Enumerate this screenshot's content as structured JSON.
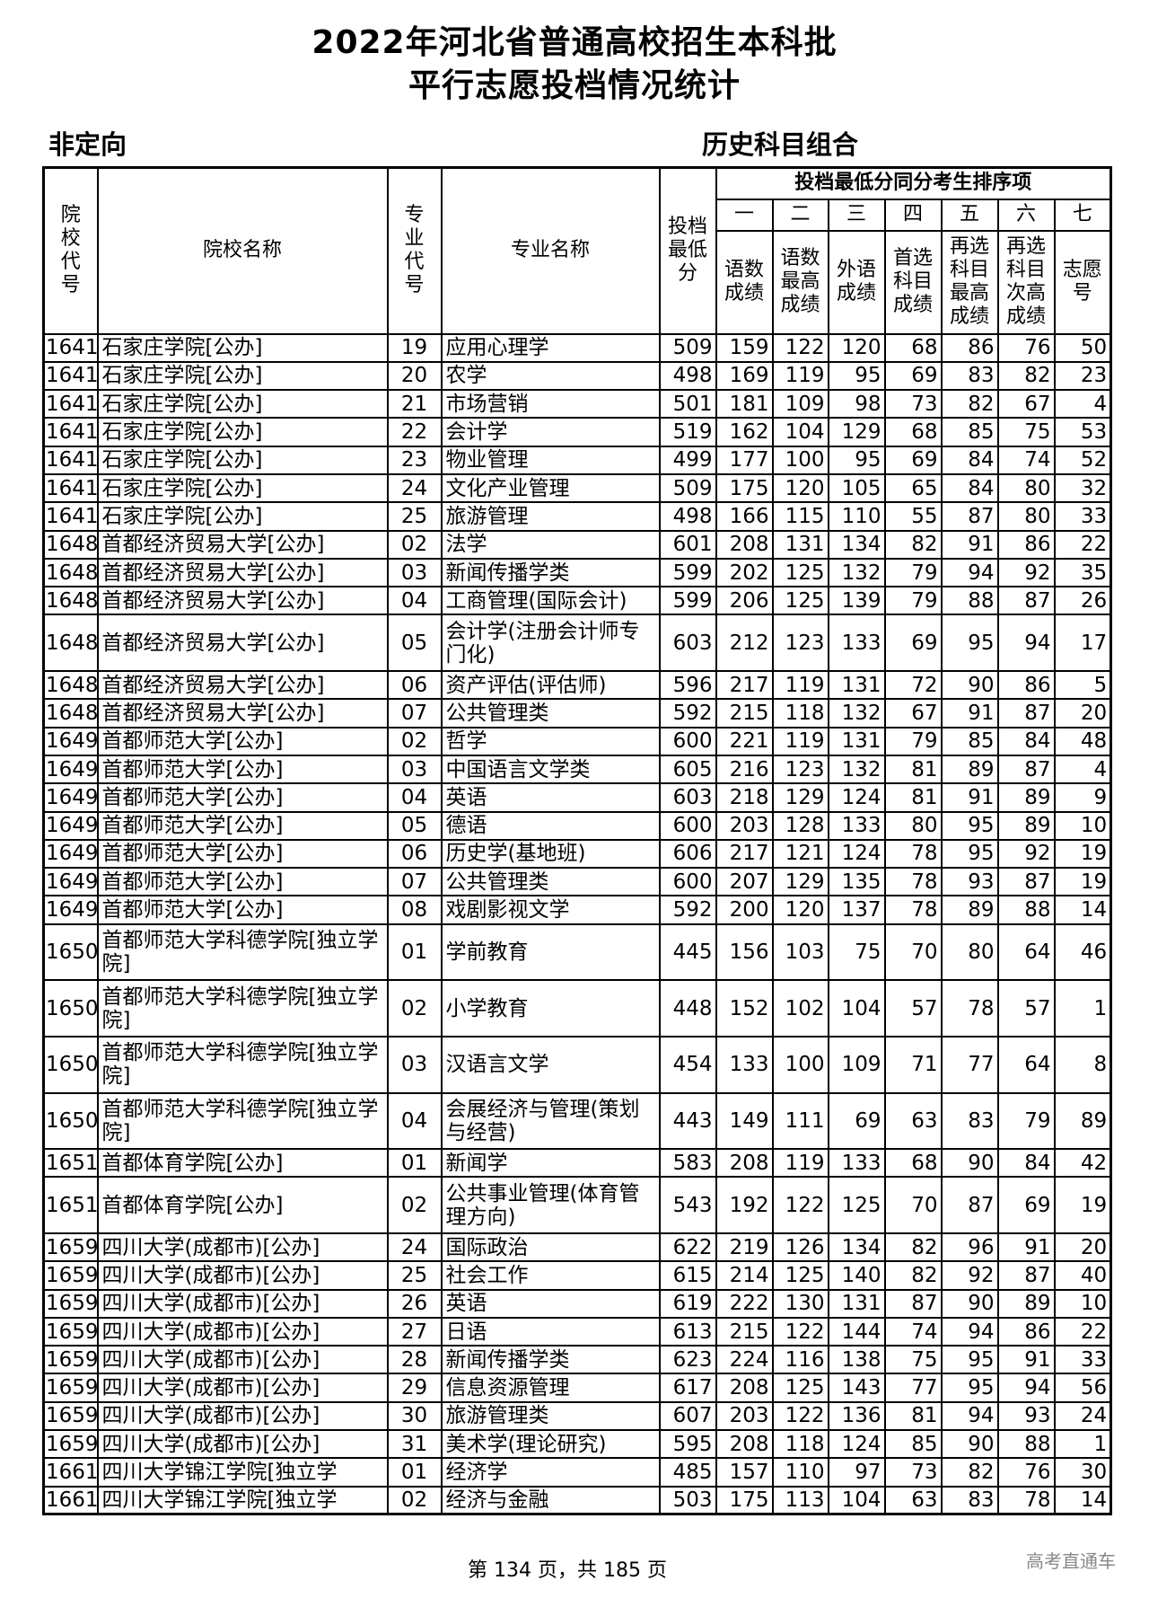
{
  "title": {
    "line1": "2022年河北省普通高校招生本科批",
    "line2": "平行志愿投档情况统计"
  },
  "subtitle_left": "非定向",
  "subtitle_right": "历史科目组合",
  "headers": {
    "school_code": "院校代号",
    "school_name": "院校名称",
    "major_code": "专业代号",
    "major_name": "专业名称",
    "min_score": "投档最低分",
    "ranking_group": "投档最低分同分考生排序项",
    "order": [
      "一",
      "二",
      "三",
      "四",
      "五",
      "六",
      "七"
    ],
    "ranking_items": [
      "语数成绩",
      "语数最高成绩",
      "外语成绩",
      "首选科目成绩",
      "再选科目最高成绩",
      "再选科目次高成绩",
      "志愿号"
    ]
  },
  "rows": [
    [
      "1641",
      "石家庄学院[公办]",
      "19",
      "应用心理学",
      "509",
      "159",
      "122",
      "120",
      "68",
      "86",
      "76",
      "50"
    ],
    [
      "1641",
      "石家庄学院[公办]",
      "20",
      "农学",
      "498",
      "169",
      "119",
      "95",
      "69",
      "83",
      "82",
      "23"
    ],
    [
      "1641",
      "石家庄学院[公办]",
      "21",
      "市场营销",
      "501",
      "181",
      "109",
      "98",
      "73",
      "82",
      "67",
      "4"
    ],
    [
      "1641",
      "石家庄学院[公办]",
      "22",
      "会计学",
      "519",
      "162",
      "104",
      "129",
      "68",
      "85",
      "75",
      "53"
    ],
    [
      "1641",
      "石家庄学院[公办]",
      "23",
      "物业管理",
      "499",
      "177",
      "100",
      "95",
      "69",
      "84",
      "74",
      "52"
    ],
    [
      "1641",
      "石家庄学院[公办]",
      "24",
      "文化产业管理",
      "509",
      "175",
      "120",
      "105",
      "65",
      "84",
      "80",
      "32"
    ],
    [
      "1641",
      "石家庄学院[公办]",
      "25",
      "旅游管理",
      "498",
      "166",
      "115",
      "110",
      "55",
      "87",
      "80",
      "33"
    ],
    [
      "1648",
      "首都经济贸易大学[公办]",
      "02",
      "法学",
      "601",
      "208",
      "131",
      "134",
      "82",
      "91",
      "86",
      "22"
    ],
    [
      "1648",
      "首都经济贸易大学[公办]",
      "03",
      "新闻传播学类",
      "599",
      "202",
      "125",
      "132",
      "79",
      "94",
      "92",
      "35"
    ],
    [
      "1648",
      "首都经济贸易大学[公办]",
      "04",
      "工商管理(国际会计)",
      "599",
      "206",
      "125",
      "139",
      "79",
      "88",
      "87",
      "26"
    ],
    [
      "1648",
      "首都经济贸易大学[公办]",
      "05",
      "会计学(注册会计师专门化)",
      "603",
      "212",
      "123",
      "133",
      "69",
      "95",
      "94",
      "17"
    ],
    [
      "1648",
      "首都经济贸易大学[公办]",
      "06",
      "资产评估(评估师)",
      "596",
      "217",
      "119",
      "131",
      "72",
      "90",
      "86",
      "5"
    ],
    [
      "1648",
      "首都经济贸易大学[公办]",
      "07",
      "公共管理类",
      "592",
      "215",
      "118",
      "132",
      "67",
      "91",
      "87",
      "20"
    ],
    [
      "1649",
      "首都师范大学[公办]",
      "02",
      "哲学",
      "600",
      "221",
      "119",
      "131",
      "79",
      "85",
      "84",
      "48"
    ],
    [
      "1649",
      "首都师范大学[公办]",
      "03",
      "中国语言文学类",
      "605",
      "216",
      "123",
      "132",
      "81",
      "89",
      "87",
      "4"
    ],
    [
      "1649",
      "首都师范大学[公办]",
      "04",
      "英语",
      "603",
      "218",
      "129",
      "124",
      "81",
      "91",
      "89",
      "9"
    ],
    [
      "1649",
      "首都师范大学[公办]",
      "05",
      "德语",
      "600",
      "203",
      "128",
      "133",
      "80",
      "95",
      "89",
      "10"
    ],
    [
      "1649",
      "首都师范大学[公办]",
      "06",
      "历史学(基地班)",
      "606",
      "217",
      "121",
      "124",
      "78",
      "95",
      "92",
      "19"
    ],
    [
      "1649",
      "首都师范大学[公办]",
      "07",
      "公共管理类",
      "600",
      "207",
      "129",
      "135",
      "78",
      "93",
      "87",
      "19"
    ],
    [
      "1649",
      "首都师范大学[公办]",
      "08",
      "戏剧影视文学",
      "592",
      "200",
      "120",
      "137",
      "78",
      "89",
      "88",
      "14"
    ],
    [
      "1650",
      "首都师范大学科德学院[独立学院]",
      "01",
      "学前教育",
      "445",
      "156",
      "103",
      "75",
      "70",
      "80",
      "64",
      "46"
    ],
    [
      "1650",
      "首都师范大学科德学院[独立学院]",
      "02",
      "小学教育",
      "448",
      "152",
      "102",
      "104",
      "57",
      "78",
      "57",
      "1"
    ],
    [
      "1650",
      "首都师范大学科德学院[独立学院]",
      "03",
      "汉语言文学",
      "454",
      "133",
      "100",
      "109",
      "71",
      "77",
      "64",
      "8"
    ],
    [
      "1650",
      "首都师范大学科德学院[独立学院]",
      "04",
      "会展经济与管理(策划与经营)",
      "443",
      "149",
      "111",
      "69",
      "63",
      "83",
      "79",
      "89"
    ],
    [
      "1651",
      "首都体育学院[公办]",
      "01",
      "新闻学",
      "583",
      "208",
      "119",
      "133",
      "68",
      "90",
      "84",
      "42"
    ],
    [
      "1651",
      "首都体育学院[公办]",
      "02",
      "公共事业管理(体育管理方向)",
      "543",
      "192",
      "122",
      "125",
      "70",
      "87",
      "69",
      "19"
    ],
    [
      "1659",
      "四川大学(成都市)[公办]",
      "24",
      "国际政治",
      "622",
      "219",
      "126",
      "134",
      "82",
      "96",
      "91",
      "20"
    ],
    [
      "1659",
      "四川大学(成都市)[公办]",
      "25",
      "社会工作",
      "615",
      "214",
      "125",
      "140",
      "82",
      "92",
      "87",
      "40"
    ],
    [
      "1659",
      "四川大学(成都市)[公办]",
      "26",
      "英语",
      "619",
      "222",
      "130",
      "131",
      "87",
      "90",
      "89",
      "10"
    ],
    [
      "1659",
      "四川大学(成都市)[公办]",
      "27",
      "日语",
      "613",
      "215",
      "122",
      "144",
      "74",
      "94",
      "86",
      "22"
    ],
    [
      "1659",
      "四川大学(成都市)[公办]",
      "28",
      "新闻传播学类",
      "623",
      "224",
      "116",
      "138",
      "75",
      "95",
      "91",
      "33"
    ],
    [
      "1659",
      "四川大学(成都市)[公办]",
      "29",
      "信息资源管理",
      "617",
      "208",
      "125",
      "143",
      "77",
      "95",
      "94",
      "56"
    ],
    [
      "1659",
      "四川大学(成都市)[公办]",
      "30",
      "旅游管理类",
      "607",
      "203",
      "122",
      "136",
      "81",
      "94",
      "93",
      "24"
    ],
    [
      "1659",
      "四川大学(成都市)[公办]",
      "31",
      "美术学(理论研究)",
      "595",
      "208",
      "118",
      "124",
      "85",
      "90",
      "88",
      "1"
    ],
    [
      "1661",
      "四川大学锦江学院[独立学",
      "01",
      "经济学",
      "485",
      "157",
      "110",
      "97",
      "73",
      "82",
      "76",
      "30"
    ],
    [
      "1661",
      "四川大学锦江学院[独立学",
      "02",
      "经济与金融",
      "503",
      "175",
      "113",
      "104",
      "63",
      "83",
      "78",
      "14"
    ]
  ],
  "footer": "第 134 页，共 185 页",
  "watermark": "高考直通车"
}
